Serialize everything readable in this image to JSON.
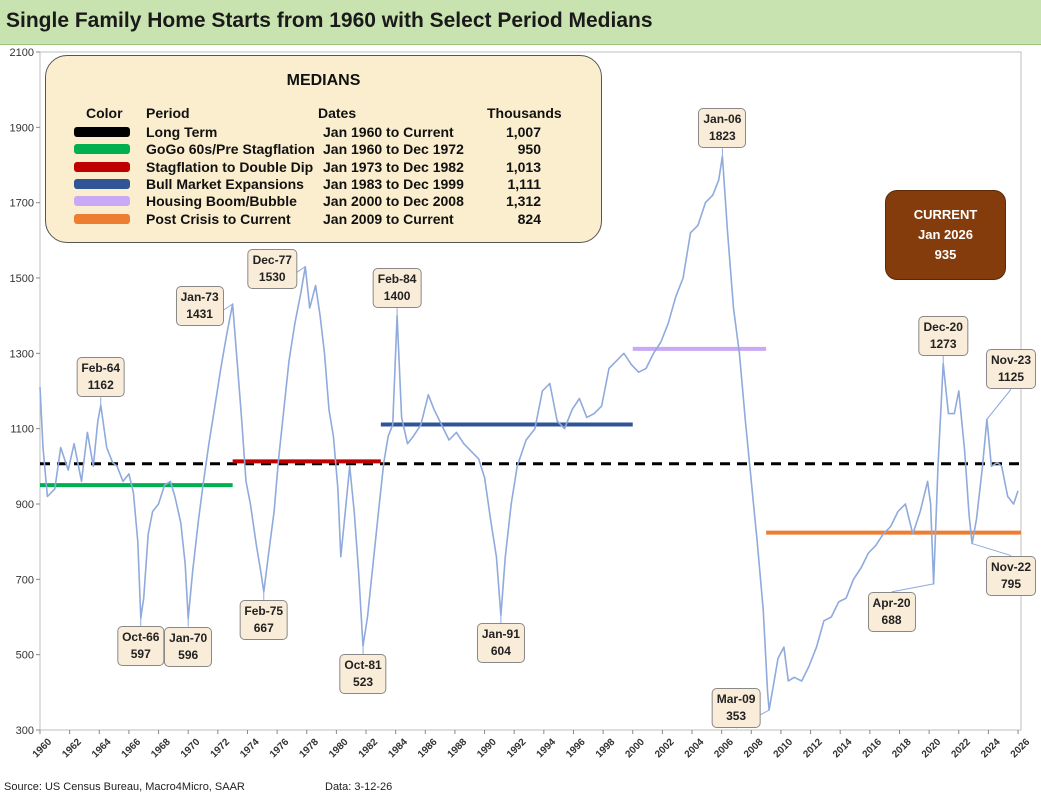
{
  "title": "Single Family Home Starts from 1960 with Select Period Medians",
  "footer": {
    "source": "Source: US Census Bureau, Macro4Micro, SAAR",
    "data_date": "Data: 3-12-26"
  },
  "legend": {
    "title": "MEDIANS",
    "headers": {
      "color": "Color",
      "period": "Period",
      "dates": "Dates",
      "thousands": "Thousands"
    },
    "rows": [
      {
        "color": "#000000",
        "period": "Long Term",
        "dates": "Jan 1960 to Current",
        "value": "1,007"
      },
      {
        "color": "#00b050",
        "period": "GoGo 60s/Pre Stagflation",
        "dates": "Jan 1960 to Dec 1972",
        "value": "950"
      },
      {
        "color": "#c00000",
        "period": "Stagflation to Double Dip",
        "dates": "Jan 1973 to Dec 1982",
        "value": "1,013"
      },
      {
        "color": "#2f5597",
        "period": "Bull Market Expansions",
        "dates": "Jan 1983 to Dec 1999",
        "value": "1,111"
      },
      {
        "color": "#c9a9f5",
        "period": "Housing Boom/Bubble",
        "dates": "Jan 2000 to Dec 2008",
        "value": "1,312"
      },
      {
        "color": "#ed7d31",
        "period": "Post Crisis to Current",
        "dates": "Jan 2009 to Current",
        "value": "824"
      }
    ]
  },
  "current_box": {
    "label": "CURRENT",
    "date": "Jan 2026",
    "value": "935",
    "color": "#843c0c"
  },
  "chart_data": {
    "type": "line",
    "ylim": [
      300,
      2100
    ],
    "yticks": [
      300,
      500,
      700,
      900,
      1100,
      1300,
      1500,
      1700,
      1900,
      2100
    ],
    "xlim": [
      1960,
      2026.2
    ],
    "xticks": [
      "1960",
      "1962",
      "1964",
      "1966",
      "1968",
      "1970",
      "1972",
      "1974",
      "1976",
      "1978",
      "1980",
      "1982",
      "1984",
      "1986",
      "1988",
      "1990",
      "1992",
      "1994",
      "1996",
      "1998",
      "2000",
      "2002",
      "2004",
      "2006",
      "2008",
      "2010",
      "2012",
      "2014",
      "2016",
      "2018",
      "2020",
      "2022",
      "2024",
      "2026"
    ],
    "series": [
      {
        "color": "#8faadc",
        "points": [
          [
            1960.0,
            1210
          ],
          [
            1960.2,
            1050
          ],
          [
            1960.5,
            920
          ],
          [
            1961.0,
            940
          ],
          [
            1961.4,
            1050
          ],
          [
            1961.9,
            990
          ],
          [
            1962.3,
            1060
          ],
          [
            1962.8,
            960
          ],
          [
            1963.2,
            1090
          ],
          [
            1963.6,
            1000
          ],
          [
            1963.9,
            1120
          ],
          [
            1964.1,
            1162
          ],
          [
            1964.5,
            1050
          ],
          [
            1964.9,
            1010
          ],
          [
            1965.2,
            1000
          ],
          [
            1965.6,
            960
          ],
          [
            1966.0,
            980
          ],
          [
            1966.3,
            930
          ],
          [
            1966.6,
            800
          ],
          [
            1966.8,
            597
          ],
          [
            1967.0,
            650
          ],
          [
            1967.3,
            820
          ],
          [
            1967.6,
            880
          ],
          [
            1968.0,
            900
          ],
          [
            1968.4,
            950
          ],
          [
            1968.8,
            960
          ],
          [
            1969.1,
            920
          ],
          [
            1969.5,
            850
          ],
          [
            1969.8,
            740
          ],
          [
            1970.0,
            596
          ],
          [
            1970.3,
            720
          ],
          [
            1970.7,
            860
          ],
          [
            1971.0,
            950
          ],
          [
            1971.4,
            1060
          ],
          [
            1971.8,
            1160
          ],
          [
            1972.2,
            1260
          ],
          [
            1972.6,
            1350
          ],
          [
            1973.0,
            1431
          ],
          [
            1973.3,
            1280
          ],
          [
            1973.6,
            1130
          ],
          [
            1973.9,
            960
          ],
          [
            1974.2,
            900
          ],
          [
            1974.6,
            790
          ],
          [
            1974.9,
            720
          ],
          [
            1975.1,
            667
          ],
          [
            1975.4,
            760
          ],
          [
            1975.8,
            880
          ],
          [
            1976.1,
            1020
          ],
          [
            1976.4,
            1130
          ],
          [
            1976.8,
            1280
          ],
          [
            1977.2,
            1380
          ],
          [
            1977.6,
            1460
          ],
          [
            1977.9,
            1530
          ],
          [
            1978.2,
            1420
          ],
          [
            1978.6,
            1480
          ],
          [
            1978.9,
            1400
          ],
          [
            1979.2,
            1300
          ],
          [
            1979.5,
            1150
          ],
          [
            1979.8,
            1080
          ],
          [
            1980.1,
            940
          ],
          [
            1980.3,
            760
          ],
          [
            1980.6,
            880
          ],
          [
            1980.9,
            1000
          ],
          [
            1981.2,
            880
          ],
          [
            1981.5,
            720
          ],
          [
            1981.8,
            523
          ],
          [
            1982.1,
            600
          ],
          [
            1982.5,
            750
          ],
          [
            1982.9,
            900
          ],
          [
            1983.2,
            1010
          ],
          [
            1983.5,
            1080
          ],
          [
            1983.8,
            1110
          ],
          [
            1984.1,
            1400
          ],
          [
            1984.4,
            1130
          ],
          [
            1984.8,
            1060
          ],
          [
            1985.2,
            1080
          ],
          [
            1985.7,
            1110
          ],
          [
            1986.2,
            1190
          ],
          [
            1986.6,
            1150
          ],
          [
            1987.1,
            1110
          ],
          [
            1987.6,
            1070
          ],
          [
            1988.1,
            1090
          ],
          [
            1988.6,
            1060
          ],
          [
            1989.1,
            1040
          ],
          [
            1989.6,
            1020
          ],
          [
            1990.0,
            970
          ],
          [
            1990.4,
            860
          ],
          [
            1990.8,
            760
          ],
          [
            1991.1,
            604
          ],
          [
            1991.4,
            760
          ],
          [
            1991.8,
            900
          ],
          [
            1992.2,
            1000
          ],
          [
            1992.8,
            1070
          ],
          [
            1993.4,
            1100
          ],
          [
            1993.9,
            1200
          ],
          [
            1994.4,
            1220
          ],
          [
            1994.9,
            1120
          ],
          [
            1995.4,
            1100
          ],
          [
            1995.9,
            1150
          ],
          [
            1996.4,
            1180
          ],
          [
            1996.9,
            1130
          ],
          [
            1997.4,
            1140
          ],
          [
            1997.9,
            1160
          ],
          [
            1998.4,
            1260
          ],
          [
            1998.9,
            1280
          ],
          [
            1999.4,
            1300
          ],
          [
            1999.9,
            1270
          ],
          [
            2000.4,
            1250
          ],
          [
            2000.9,
            1260
          ],
          [
            2001.4,
            1300
          ],
          [
            2001.9,
            1330
          ],
          [
            2002.4,
            1380
          ],
          [
            2002.9,
            1450
          ],
          [
            2003.4,
            1500
          ],
          [
            2003.9,
            1620
          ],
          [
            2004.4,
            1640
          ],
          [
            2004.9,
            1700
          ],
          [
            2005.4,
            1720
          ],
          [
            2005.8,
            1760
          ],
          [
            2006.05,
            1823
          ],
          [
            2006.4,
            1620
          ],
          [
            2006.8,
            1420
          ],
          [
            2007.2,
            1300
          ],
          [
            2007.6,
            1120
          ],
          [
            2008.0,
            960
          ],
          [
            2008.4,
            800
          ],
          [
            2008.8,
            620
          ],
          [
            2009.1,
            400
          ],
          [
            2009.2,
            353
          ],
          [
            2009.5,
            420
          ],
          [
            2009.8,
            490
          ],
          [
            2010.2,
            520
          ],
          [
            2010.5,
            430
          ],
          [
            2010.9,
            440
          ],
          [
            2011.4,
            430
          ],
          [
            2011.9,
            470
          ],
          [
            2012.4,
            520
          ],
          [
            2012.9,
            590
          ],
          [
            2013.4,
            600
          ],
          [
            2013.9,
            640
          ],
          [
            2014.4,
            650
          ],
          [
            2014.9,
            700
          ],
          [
            2015.4,
            730
          ],
          [
            2015.9,
            770
          ],
          [
            2016.4,
            790
          ],
          [
            2016.9,
            820
          ],
          [
            2017.4,
            840
          ],
          [
            2017.9,
            880
          ],
          [
            2018.4,
            900
          ],
          [
            2018.9,
            820
          ],
          [
            2019.4,
            880
          ],
          [
            2019.9,
            960
          ],
          [
            2020.1,
            900
          ],
          [
            2020.3,
            688
          ],
          [
            2020.6,
            1000
          ],
          [
            2020.95,
            1273
          ],
          [
            2021.3,
            1140
          ],
          [
            2021.7,
            1140
          ],
          [
            2022.0,
            1200
          ],
          [
            2022.4,
            1040
          ],
          [
            2022.7,
            870
          ],
          [
            2022.9,
            795
          ],
          [
            2023.2,
            860
          ],
          [
            2023.6,
            1000
          ],
          [
            2023.9,
            1125
          ],
          [
            2024.2,
            1000
          ],
          [
            2024.6,
            1010
          ],
          [
            2024.9,
            1000
          ],
          [
            2025.3,
            920
          ],
          [
            2025.7,
            900
          ],
          [
            2026.0,
            935
          ]
        ]
      }
    ],
    "medians": [
      {
        "color": "#000000",
        "value": 1007,
        "from": 1960,
        "to": 2026.2,
        "dashed": true
      },
      {
        "color": "#00b050",
        "value": 950,
        "from": 1960,
        "to": 1973.0
      },
      {
        "color": "#c00000",
        "value": 1013,
        "from": 1973.0,
        "to": 1983.0
      },
      {
        "color": "#2f5597",
        "value": 1111,
        "from": 1983.0,
        "to": 2000.0
      },
      {
        "color": "#c9a9f5",
        "value": 1312,
        "from": 2000.0,
        "to": 2009.0
      },
      {
        "color": "#ed7d31",
        "value": 824,
        "from": 2009.0,
        "to": 2026.2
      }
    ],
    "annotations": [
      {
        "label": "Feb-64",
        "value": "1162",
        "x": 1964.1,
        "y": 1162,
        "box": "above"
      },
      {
        "label": "Oct-66",
        "value": "597",
        "x": 1966.8,
        "y": 597,
        "box": "below"
      },
      {
        "label": "Jan-70",
        "value": "596",
        "x": 1970.0,
        "y": 596,
        "box": "below"
      },
      {
        "label": "Jan-73",
        "value": "1431",
        "x": 1973.0,
        "y": 1431,
        "box": "left"
      },
      {
        "label": "Feb-75",
        "value": "667",
        "x": 1975.1,
        "y": 667,
        "box": "below"
      },
      {
        "label": "Dec-77",
        "value": "1530",
        "x": 1977.9,
        "y": 1530,
        "box": "left"
      },
      {
        "label": "Oct-81",
        "value": "523",
        "x": 1981.8,
        "y": 523,
        "box": "below"
      },
      {
        "label": "Feb-84",
        "value": "1400",
        "x": 1984.1,
        "y": 1400,
        "box": "above"
      },
      {
        "label": "Jan-91",
        "value": "604",
        "x": 1991.1,
        "y": 604,
        "box": "below"
      },
      {
        "label": "Jan-06",
        "value": "1823",
        "x": 2006.05,
        "y": 1823,
        "box": "above"
      },
      {
        "label": "Mar-09",
        "value": "353",
        "x": 2009.2,
        "y": 353,
        "box": "left"
      },
      {
        "label": "Apr-20",
        "value": "688",
        "x": 2020.3,
        "y": 688,
        "box": "below-left"
      },
      {
        "label": "Dec-20",
        "value": "1273",
        "x": 2020.95,
        "y": 1273,
        "box": "above"
      },
      {
        "label": "Nov-22",
        "value": "795",
        "x": 2022.9,
        "y": 795,
        "box": "below-right"
      },
      {
        "label": "Nov-23",
        "value": "1125",
        "x": 2023.9,
        "y": 1125,
        "box": "above-right"
      }
    ]
  }
}
